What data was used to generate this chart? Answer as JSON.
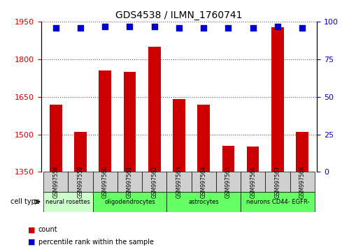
{
  "title": "GDS4538 / ILMN_1760741",
  "samples": [
    "GSM997558",
    "GSM997559",
    "GSM997560",
    "GSM997561",
    "GSM997562",
    "GSM997563",
    "GSM997564",
    "GSM997565",
    "GSM997566",
    "GSM997567",
    "GSM997568"
  ],
  "counts": [
    1620,
    1510,
    1755,
    1750,
    1850,
    1640,
    1620,
    1455,
    1450,
    1930,
    1510
  ],
  "percentile": [
    96,
    96,
    97,
    97,
    97,
    96,
    96,
    96,
    96,
    97,
    96
  ],
  "ylim_left": [
    1350,
    1950
  ],
  "ylim_right": [
    0,
    100
  ],
  "yticks_left": [
    1350,
    1500,
    1650,
    1800,
    1950
  ],
  "yticks_right": [
    0,
    25,
    50,
    75,
    100
  ],
  "bar_color": "#cc0000",
  "dot_color": "#0000cc",
  "cell_groups": [
    {
      "label": "neural rosettes",
      "start": 0,
      "end": 2,
      "color": "#ccffcc"
    },
    {
      "label": "oligodendrocytes",
      "start": 2,
      "end": 5,
      "color": "#66ff66"
    },
    {
      "label": "astrocytes",
      "start": 5,
      "end": 8,
      "color": "#66ff66"
    },
    {
      "label": "neurons CD44- EGFR-",
      "start": 8,
      "end": 11,
      "color": "#66ff66"
    }
  ],
  "cell_type_label": "cell type",
  "legend_count_label": "count",
  "legend_pct_label": "percentile rank within the sample",
  "dotted_grid_color": "#555555",
  "background_color": "#ffffff",
  "tick_label_color_left": "#cc0000",
  "tick_label_color_right": "#0000cc"
}
